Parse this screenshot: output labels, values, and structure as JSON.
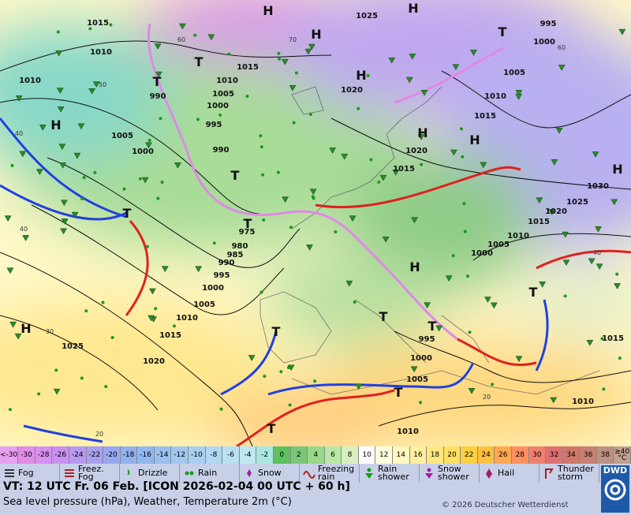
{
  "map": {
    "isobar_labels": [
      "1015",
      "1010",
      "1010",
      "1005",
      "1000",
      "990",
      "1010",
      "1005",
      "1000",
      "995",
      "990",
      "1015",
      "1020",
      "1025",
      "1000",
      "995",
      "1005",
      "1010",
      "1015",
      "1020",
      "1015",
      "1030",
      "1025",
      "1020",
      "1015",
      "1010",
      "1005",
      "1000",
      "975",
      "980",
      "985",
      "990",
      "995",
      "1000",
      "1005",
      "1010",
      "1015",
      "1020",
      "1025",
      "995",
      "1000",
      "1005",
      "1010",
      "1010",
      "1015"
    ],
    "pressure_centers": [
      "H",
      "H",
      "H",
      "H",
      "H",
      "H",
      "H",
      "H",
      "H",
      "H",
      "T",
      "T",
      "T",
      "T",
      "T",
      "T",
      "T",
      "T",
      "T",
      "T",
      "T",
      "T"
    ],
    "isotherm_labels": [
      "60",
      "50",
      "40",
      "40",
      "30",
      "20",
      "60",
      "70",
      "40",
      "20"
    ]
  },
  "temperature_scale": {
    "labels": [
      "<-30",
      "-30",
      "-28",
      "-26",
      "-24",
      "-22",
      "-20",
      "-18",
      "-16",
      "-14",
      "-12",
      "-10",
      "-8",
      "-6",
      "-4",
      "-2",
      "0",
      "2",
      "4",
      "6",
      "8",
      "10",
      "12",
      "14",
      "16",
      "18",
      "20",
      "22",
      "24",
      "26",
      "28",
      "30",
      "32",
      "34",
      "36",
      "38",
      "≥40 °C"
    ]
  },
  "legend": [
    "Fog",
    "Freez. Fog",
    "Drizzle",
    "Rain",
    "Snow",
    "Freezing rain",
    "Rain shower",
    "Snow shower",
    "Hail",
    "Thunder storm"
  ],
  "footer": {
    "valid_time": "VT: 12 UTC Fr.  06 Feb. [ICON 2026-02-04  00 UTC + 60 h]",
    "description": "Sea level pressure (hPa), Weather, Temperature 2m (°C)",
    "copyright": "© 2026 Deutscher Wetterdienst",
    "logo": "DWD"
  }
}
